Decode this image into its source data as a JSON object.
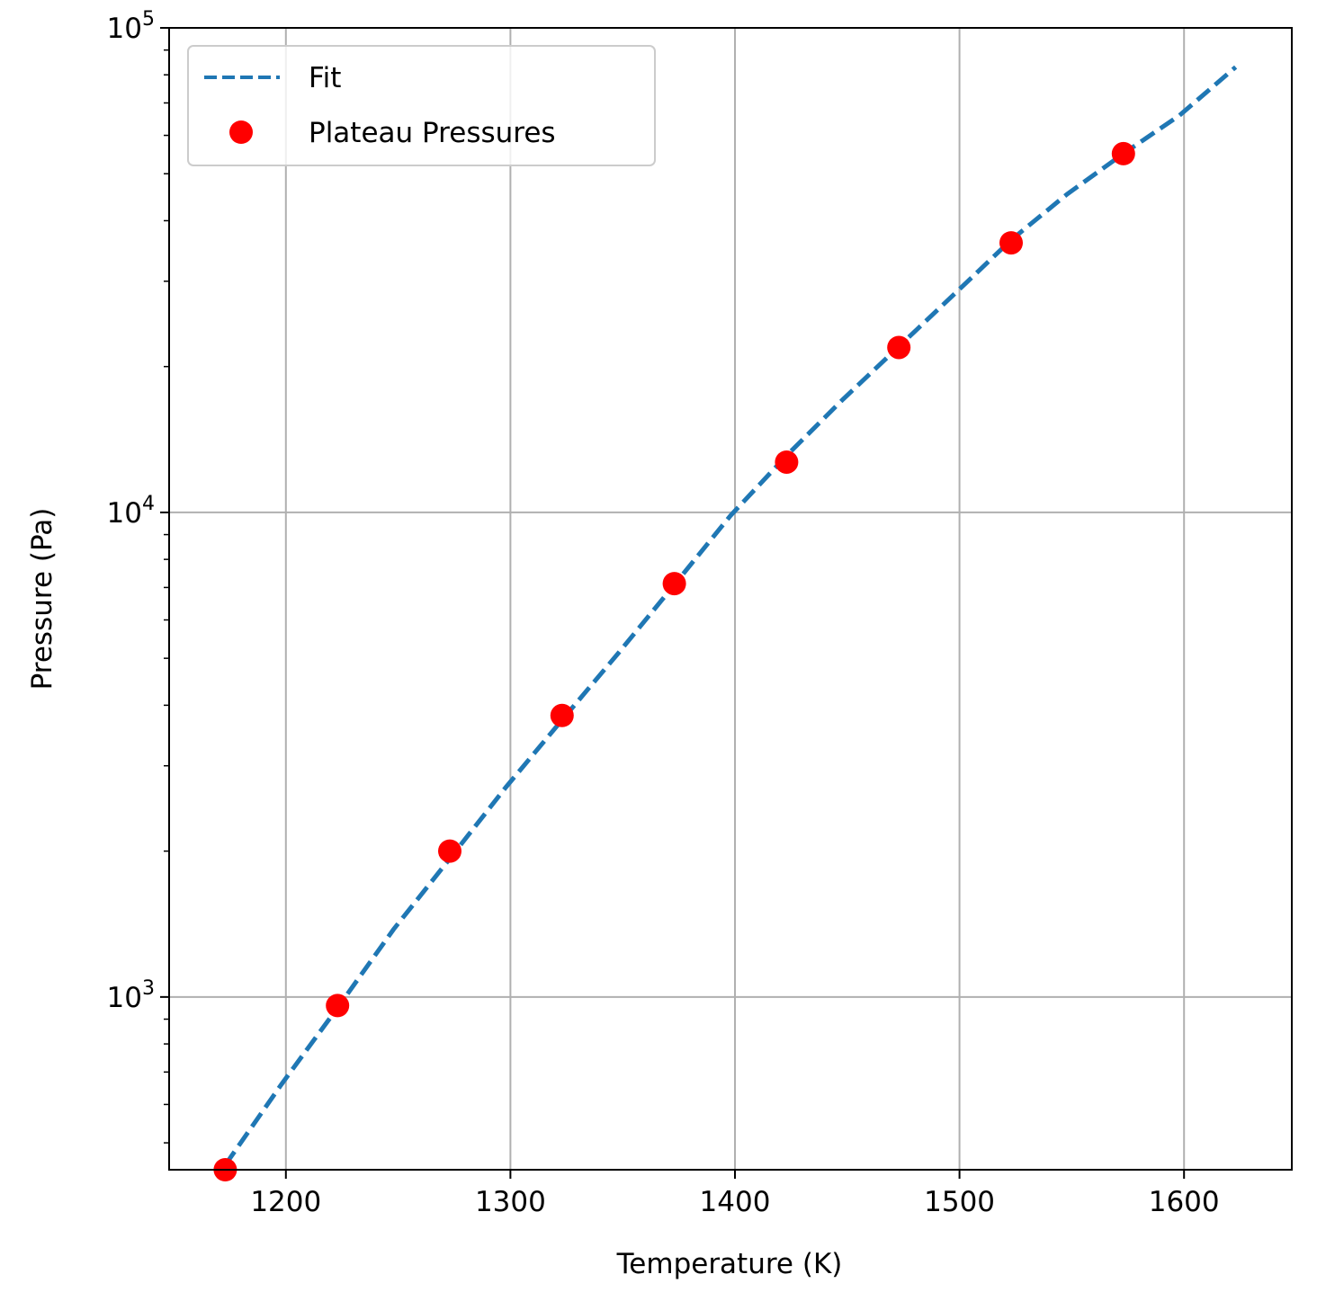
{
  "chart_data": {
    "type": "scatter",
    "title": "",
    "xlabel": "Temperature (K)",
    "ylabel": "Pressure (Pa)",
    "xlim": [
      1148,
      1648
    ],
    "ylim": [
      440,
      100000
    ],
    "yscale": "log",
    "grid": true,
    "legend_position": "top-left",
    "x_ticks": [
      1200,
      1300,
      1400,
      1500,
      1600
    ],
    "x_tick_labels": [
      "1200",
      "1300",
      "1400",
      "1500",
      "1600"
    ],
    "y_ticks": [
      1000,
      10000,
      100000
    ],
    "y_tick_labels": [
      {
        "base": "10",
        "exp": "3"
      },
      {
        "base": "10",
        "exp": "4"
      },
      {
        "base": "10",
        "exp": "5"
      }
    ],
    "series": [
      {
        "name": "Fit",
        "kind": "line",
        "style": "dashed",
        "color": "#1f77b4",
        "x": [
          1173,
          1198,
          1223,
          1248,
          1273,
          1298,
          1323,
          1348,
          1373,
          1398,
          1423,
          1448,
          1473,
          1498,
          1523,
          1548,
          1573,
          1598,
          1623
        ],
        "y": [
          450,
          660,
          950,
          1380,
          1930,
          2710,
          3730,
          5120,
          7090,
          9850,
          13100,
          17100,
          22000,
          28300,
          36500,
          45400,
          55000,
          66000,
          83000
        ]
      },
      {
        "name": "Plateau Pressures",
        "kind": "scatter",
        "color": "#ff0000",
        "x": [
          1173,
          1223,
          1273,
          1323,
          1373,
          1423,
          1473,
          1523,
          1573
        ],
        "y": [
          440,
          960,
          2000,
          3810,
          7130,
          12700,
          21900,
          36000,
          55000
        ]
      }
    ]
  }
}
